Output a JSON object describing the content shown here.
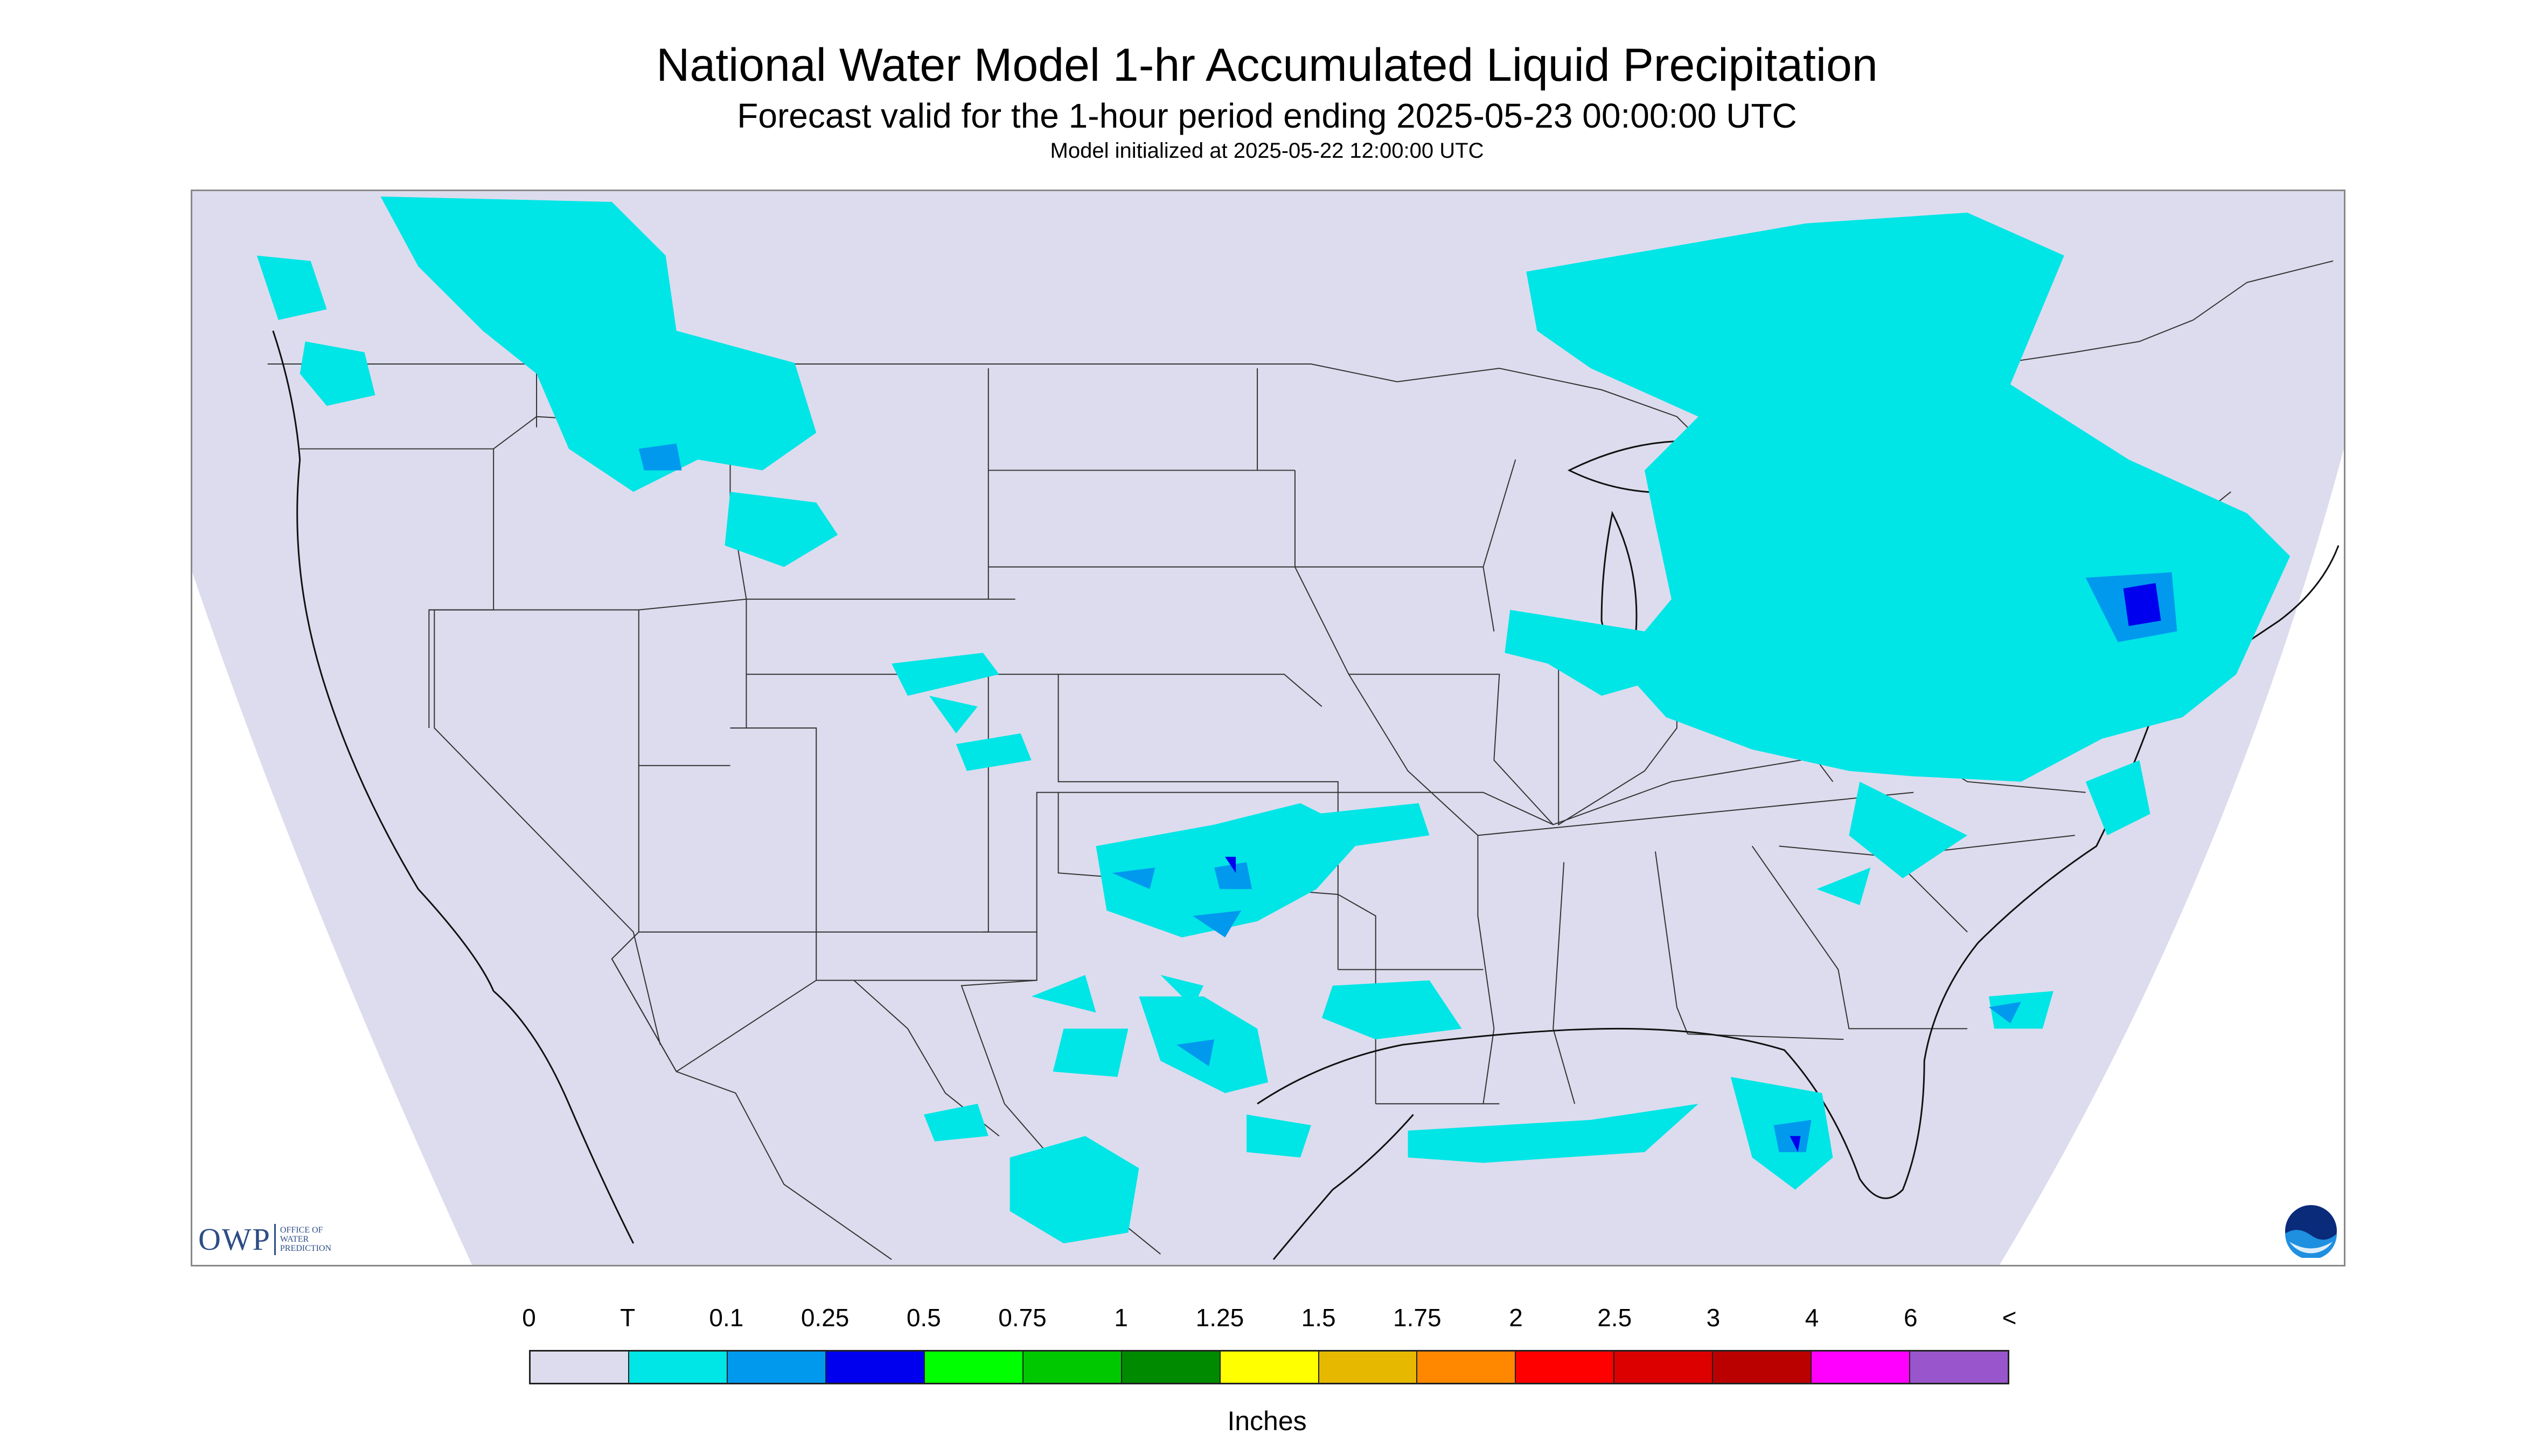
{
  "title": "National Water Model 1-hr Accumulated Liquid Precipitation",
  "subtitle": "Forecast valid for the 1-hour period ending 2025-05-23 00:00:00 UTC",
  "init_line": "Model initialized at 2025-05-22 12:00:00 UTC",
  "logo": {
    "owp_text": "OWP",
    "owp_small_lines": [
      "OFFICE OF",
      "WATER",
      "PREDICTION"
    ],
    "noaa_text": "NOAA"
  },
  "legend": {
    "units": "Inches",
    "labels": [
      "0",
      "T",
      "0.1",
      "0.25",
      "0.5",
      "0.75",
      "1",
      "1.25",
      "1.5",
      "1.75",
      "2",
      "2.5",
      "3",
      "4",
      "6",
      "<"
    ],
    "colors": [
      "#dcdcee",
      "#00e5e5",
      "#0099ee",
      "#0000ee",
      "#00ff00",
      "#00c800",
      "#008a00",
      "#ffff00",
      "#e6b800",
      "#ff8800",
      "#ff0000",
      "#dd0000",
      "#bb0000",
      "#ff00ff",
      "#9955cc"
    ]
  },
  "map": {
    "background_color": "#dcdcee",
    "outside_color": "#ffffff",
    "precip_colors": {
      "trace": "#00e5e5",
      "light": "#0099ee",
      "moderate": "#0000ee"
    }
  }
}
